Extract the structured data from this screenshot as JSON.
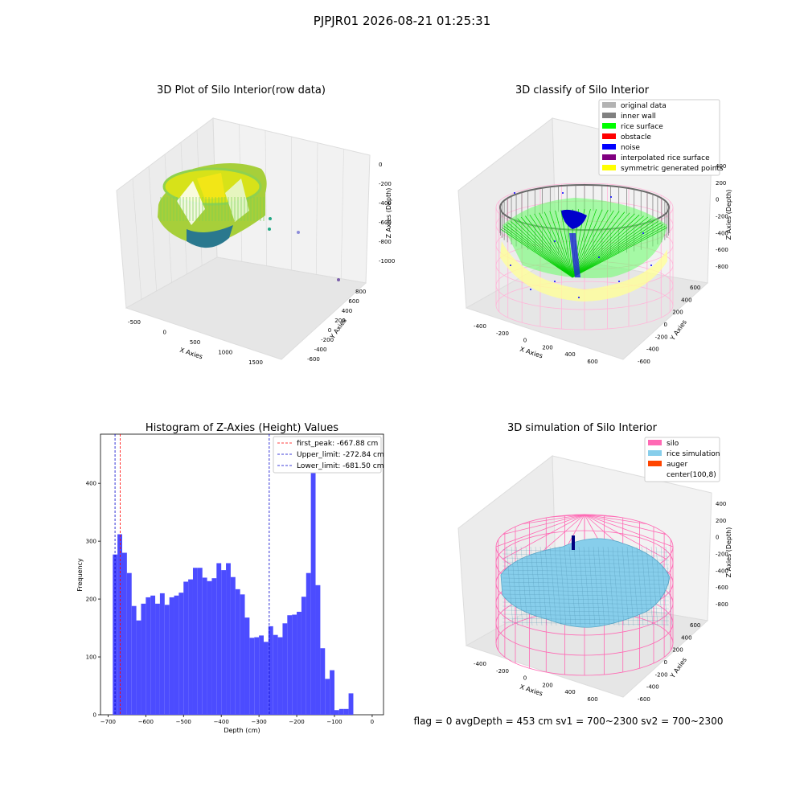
{
  "suptitle": "PJPJR01 2026-08-21 01:25:31",
  "info_text": "flag = 0     avgDepth = 453 cm  sv1 = 700~2300  sv2 = 700~2300",
  "chart_data": [
    {
      "type": "scatter3d",
      "title": "3D Plot of Silo Interior(row data)",
      "xlabel": "X Axies",
      "ylabel": "Y Axies",
      "zlabel": "Z Axies (Depth)",
      "xticks": [
        "-500",
        "0",
        "500",
        "1000",
        "1500"
      ],
      "yticks": [
        "800",
        "600",
        "400",
        "200",
        "0",
        "-200",
        "-400",
        "-600"
      ],
      "zticks": [
        "0",
        "-200",
        "-400",
        "-600",
        "-800",
        "-1000"
      ],
      "colors": {
        "low": "#2a788e",
        "mid": "#22a884",
        "high": "#fde725"
      }
    },
    {
      "type": "scatter3d",
      "title": "3D classify of Silo Interior",
      "xlabel": "X Axies",
      "ylabel": "Y Axies",
      "zlabel": "Z Axies (Depth)",
      "xticks": [
        "-400",
        "-200",
        "0",
        "200",
        "400",
        "600"
      ],
      "yticks": [
        "600",
        "400",
        "200",
        "0",
        "-200",
        "-400",
        "-600"
      ],
      "zticks": [
        "400",
        "200",
        "0",
        "-200",
        "-400",
        "-600",
        "-800"
      ],
      "legend_position": "top-right",
      "legend": [
        {
          "label": "original data",
          "color": "#b3b3b3"
        },
        {
          "label": "inner wall",
          "color": "#808080"
        },
        {
          "label": "rice surface",
          "color": "#00ff00"
        },
        {
          "label": "obstacle",
          "color": "#ff0000"
        },
        {
          "label": "noise",
          "color": "#0000ff"
        },
        {
          "label": "interpolated rice surface",
          "color": "#800080"
        },
        {
          "label": "symmetric generated points",
          "color": "#ffff00"
        }
      ]
    },
    {
      "type": "bar",
      "title": "Histogram of Z-Axies (Height) Values",
      "xlabel": "Depth (cm)",
      "ylabel": "Frequency",
      "xlim": [
        -720,
        30
      ],
      "ylim": [
        0,
        485
      ],
      "xticks": [
        -700,
        -600,
        -500,
        -400,
        -300,
        -200,
        -100,
        0
      ],
      "yticks": [
        0,
        100,
        200,
        300,
        400
      ],
      "bin_width": 12.5,
      "bin_start": -687.5,
      "values": [
        277,
        312,
        280,
        245,
        188,
        163,
        192,
        203,
        206,
        192,
        210,
        190,
        203,
        206,
        211,
        230,
        234,
        254,
        254,
        237,
        231,
        236,
        262,
        250,
        262,
        238,
        217,
        208,
        168,
        133,
        134,
        137,
        126,
        153,
        138,
        134,
        158,
        172,
        173,
        178,
        204,
        245,
        470,
        224,
        115,
        62,
        77,
        8,
        10,
        10,
        37
      ],
      "bar_color": "#4c4cff",
      "vlines": [
        {
          "label": "first_peak: -667.88 cm",
          "x": -667.88,
          "color": "#ff0000"
        },
        {
          "label": "Upper_limit: -272.84 cm",
          "x": -272.84,
          "color": "#0000cc"
        },
        {
          "label": "Lower_limit: -681.50 cm",
          "x": -681.5,
          "color": "#0000cc"
        }
      ],
      "legend_position": "top-right"
    },
    {
      "type": "surface3d",
      "title": "3D simulation of Silo Interior",
      "xlabel": "X Axies",
      "ylabel": "Y Axies",
      "zlabel": "Z Axies (Depth)",
      "xticks": [
        "-400",
        "-200",
        "0",
        "200",
        "400",
        "600"
      ],
      "yticks": [
        "600",
        "400",
        "200",
        "0",
        "-200",
        "-400",
        "-600"
      ],
      "zticks": [
        "400",
        "200",
        "0",
        "-200",
        "-400",
        "-600",
        "-800"
      ],
      "legend_position": "top-right",
      "legend": [
        {
          "label": "silo",
          "color": "#ff69b4"
        },
        {
          "label": "rice simulation",
          "color": "#87ceeb"
        },
        {
          "label": "auger",
          "color": "#ff4500"
        },
        {
          "label": "center(100,8)",
          "color": "#ffffff"
        }
      ]
    }
  ]
}
